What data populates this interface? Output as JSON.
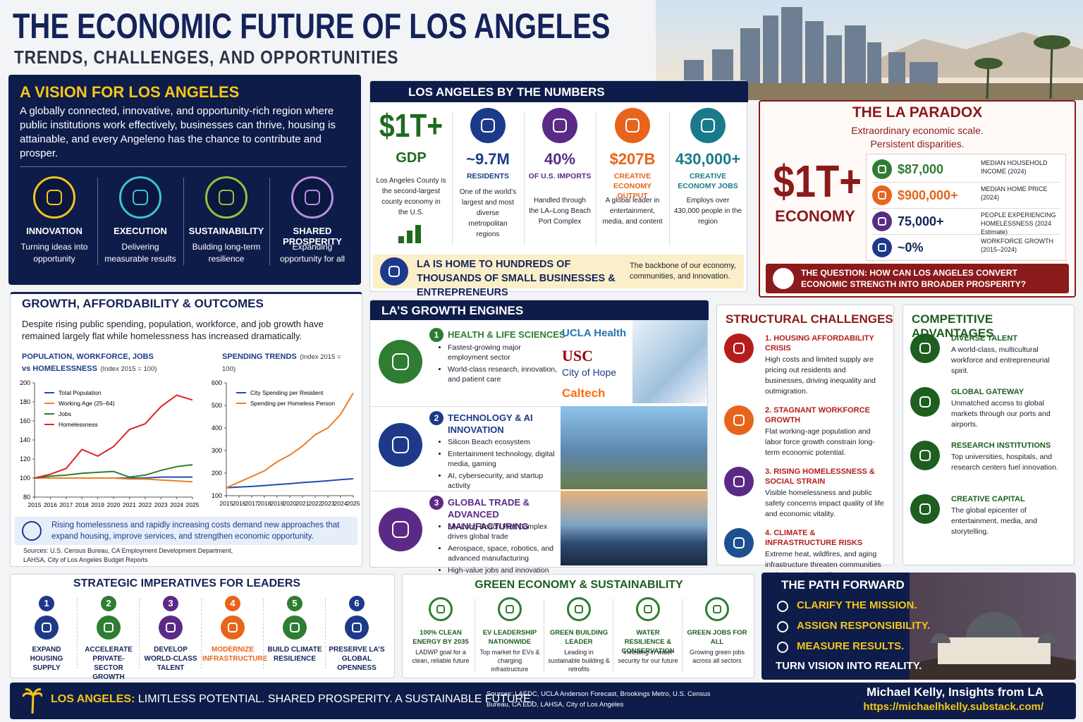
{
  "header": {
    "title": "THE ECONOMIC FUTURE OF LOS ANGELES",
    "subtitle": "TRENDS, CHALLENGES, AND OPPORTUNITIES"
  },
  "vision": {
    "title": "A VISION FOR LOS ANGELES",
    "text": "A globally connected, innovative, and opportunity-rich region where public institutions work effectively, businesses can thrive, housing is attainable, and every Angeleno has the chance to contribute and prosper.",
    "pillars": [
      {
        "label": "INNOVATION",
        "desc": "Turning ideas into opportunity"
      },
      {
        "label": "EXECUTION",
        "desc": "Delivering measurable results"
      },
      {
        "label": "SUSTAINABILITY",
        "desc": "Building long-term resilience"
      },
      {
        "label": "SHARED PROSPERITY",
        "desc": "Expanding opportunity for all"
      }
    ]
  },
  "numbers": {
    "title": "LOS ANGELES BY THE NUMBERS",
    "items": [
      {
        "value": "$1T+",
        "label": "GDP",
        "desc": "Los Angeles County is the second-largest county economy in the U.S."
      },
      {
        "value": "~9.7M",
        "label": "RESIDENTS",
        "desc": "One of the world’s largest and most diverse metropolitan regions"
      },
      {
        "value": "40%",
        "label": "OF U.S. IMPORTS",
        "desc": "Handled through the LA–Long Beach Port Complex"
      },
      {
        "value": "$207B",
        "label": "CREATIVE ECONOMY OUTPUT",
        "desc": "A global leader in entertainment, media, and content"
      },
      {
        "value": "430,000+",
        "label": "CREATIVE ECONOMY JOBS",
        "desc": "Employs over 430,000 people in the region"
      }
    ],
    "small_business": {
      "headline": "LA IS HOME TO HUNDREDS OF THOUSANDS OF SMALL BUSINESSES & ENTREPRENEURS",
      "note": "The backbone of our economy, communities, and innovation."
    }
  },
  "paradox": {
    "title": "THE LA PARADOX",
    "subtitle": "Extraordinary economic scale. Persistent disparities.",
    "big_value": "$1T+",
    "big_label": "ECONOMY",
    "stats": [
      {
        "value": "$87,000",
        "label": "MEDIAN HOUSEHOLD INCOME (2024)"
      },
      {
        "value": "$900,000+",
        "label": "MEDIAN HOME PRICE (2024)"
      },
      {
        "value": "75,000+",
        "label": "PEOPLE EXPERIENCING HOMELESSNESS (2024 Estimate)"
      },
      {
        "value": "~0%",
        "label": "WORKFORCE GROWTH (2015–2024)"
      }
    ],
    "question": "THE QUESTION: HOW CAN LOS ANGELES CONVERT ECONOMIC STRENGTH INTO BROADER PROSPERITY?"
  },
  "growth": {
    "title": "GROWTH, AFFORDABILITY & OUTCOMES",
    "text": "Despite rising public spending, population, workforce, and job growth have remained largely flat while homelessness has increased dramatically.",
    "charts": [
      {
        "type": "line",
        "title": "POPULATION, WORKFORCE, JOBS vs HOMELESSNESS",
        "subtitle": "(Index 2015 = 100)",
        "x": [
          2015,
          2016,
          2017,
          2018,
          2019,
          2020,
          2021,
          2022,
          2023,
          2024,
          2025
        ],
        "xlim": [
          2015,
          2025
        ],
        "xticks": [
          2015,
          2016,
          2017,
          2018,
          2019,
          2020,
          2021,
          2022,
          2023,
          2024,
          2025
        ],
        "ylim": [
          80,
          200
        ],
        "yticks": [
          80,
          100,
          120,
          140,
          160,
          180,
          200
        ],
        "legend": "upper left",
        "series": [
          {
            "name": "Total Population",
            "color": "#1f4fb4",
            "values": [
              100,
              100,
              100,
              100,
              100,
              100,
              100,
              100,
              101,
              101,
              101
            ]
          },
          {
            "name": "Working Age (25–64)",
            "color": "#ef7d22",
            "values": [
              100,
              100,
              100,
              100,
              100,
              100,
              99,
              99,
              98,
              97,
              96
            ]
          },
          {
            "name": "Jobs",
            "color": "#2e7d32",
            "values": [
              100,
              102,
              103,
              105,
              106,
              107,
              101,
              103,
              108,
              112,
              114
            ]
          },
          {
            "name": "Homelessness",
            "color": "#e02424",
            "values": [
              100,
              104,
              110,
              130,
              123,
              133,
              151,
              157,
              175,
              187,
              182
            ]
          }
        ]
      },
      {
        "type": "line",
        "title": "SPENDING TRENDS",
        "subtitle": "(Index 2015 = 100)",
        "x": [
          2015,
          2016,
          2017,
          2018,
          2019,
          2020,
          2021,
          2022,
          2023,
          2024,
          2025
        ],
        "xlim": [
          2015,
          2025
        ],
        "xticks": [
          2015,
          2016,
          2017,
          2018,
          2019,
          2020,
          2021,
          2022,
          2023,
          2024,
          2025
        ],
        "ylim": [
          100,
          600
        ],
        "yticks": [
          100,
          200,
          300,
          400,
          500,
          600
        ],
        "legend": "upper left",
        "series": [
          {
            "name": "City Spending per Resident",
            "color": "#1f4fb4",
            "values": [
              135,
              138,
              141,
              145,
              149,
              153,
              158,
              162,
              166,
              171,
              175
            ]
          },
          {
            "name": "Spending per Homeless Person",
            "color": "#ef7d22",
            "values": [
              135,
              160,
              185,
              210,
              250,
              280,
              320,
              370,
              400,
              460,
              555
            ]
          }
        ]
      }
    ],
    "callout": "Rising homelessness and rapidly increasing costs demand new approaches that expand housing, improve services, and strengthen economic opportunity.",
    "sources": "Sources: U.S. Census Bureau, CA Employment Development Department, LAHSA, City of Los Angeles Budget Reports"
  },
  "engines": {
    "title": "LA’S GROWTH ENGINES",
    "items": [
      {
        "number": "1",
        "title": "HEALTH & LIFE SCIENCES",
        "bullets": [
          "Fastest-growing major employment sector",
          "World-class research, innovation, and patient care"
        ],
        "partners": [
          "UCLA Health",
          "USC",
          "City of Hope",
          "Caltech"
        ]
      },
      {
        "number": "2",
        "title": "TECHNOLOGY & AI INNOVATION",
        "bullets": [
          "Silicon Beach ecosystem",
          "Entertainment technology, digital media, gaming",
          "AI, cybersecurity, and startup activity"
        ]
      },
      {
        "number": "3",
        "title": "GLOBAL TRADE & ADVANCED MANUFACTURING",
        "bullets": [
          "LA–Long Beach Port Complex drives global trade",
          "Aerospace, space, robotics, and advanced manufacturing",
          "High-value jobs and innovation"
        ]
      }
    ]
  },
  "challenges": {
    "title": "STRUCTURAL CHALLENGES",
    "items": [
      {
        "title": "1. HOUSING AFFORDABILITY CRISIS",
        "text": "High costs and limited supply are pricing out residents and businesses, driving inequality and outmigration."
      },
      {
        "title": "2. STAGNANT WORKFORCE GROWTH",
        "text": "Flat working-age population and labor force growth constrain long-term economic potential."
      },
      {
        "title": "3. RISING HOMELESSNESS & SOCIAL STRAIN",
        "text": "Visible homelessness and public safety concerns impact quality of life and economic vitality."
      },
      {
        "title": "4. CLIMATE & INFRASTRUCTURE RISKS",
        "text": "Extreme heat, wildfires, and aging infrastructure threaten communities and economic stability."
      }
    ]
  },
  "advantages": {
    "title": "COMPETITIVE ADVANTAGES",
    "items": [
      {
        "title": "DIVERSE TALENT",
        "text": "A world-class, multicultural workforce and entrepreneurial spirit."
      },
      {
        "title": "GLOBAL GATEWAY",
        "text": "Unmatched access to global markets through our ports and airports."
      },
      {
        "title": "RESEARCH INSTITUTIONS",
        "text": "Top universities, hospitals, and research centers fuel innovation."
      },
      {
        "title": "CREATIVE CAPITAL",
        "text": "The global epicenter of entertainment, media, and storytelling."
      }
    ]
  },
  "imperatives": {
    "title": "STRATEGIC IMPERATIVES FOR LEADERS",
    "items": [
      {
        "number": "1",
        "label": "EXPAND HOUSING SUPPLY"
      },
      {
        "number": "2",
        "label": "ACCELERATE PRIVATE-SECTOR GROWTH"
      },
      {
        "number": "3",
        "label": "DEVELOP WORLD-CLASS TALENT"
      },
      {
        "number": "4",
        "label": "MODERNIZE INFRASTRUCTURE"
      },
      {
        "number": "5",
        "label": "BUILD CLIMATE RESILIENCE"
      },
      {
        "number": "6",
        "label": "PRESERVE LA’S GLOBAL OPENNESS"
      }
    ]
  },
  "green": {
    "title": "GREEN ECONOMY & SUSTAINABILITY",
    "items": [
      {
        "title": "100% CLEAN ENERGY BY 2035",
        "desc": "LADWP goal for a clean, reliable future"
      },
      {
        "title": "EV LEADERSHIP NATIONWIDE",
        "desc": "Top market for EVs & charging infrastructure"
      },
      {
        "title": "GREEN BUILDING LEADER",
        "desc": "Leading in sustainable building & retrofits"
      },
      {
        "title": "WATER RESILIENCE & CONSERVATION",
        "desc": "Investing in water security for our future"
      },
      {
        "title": "GREEN JOBS FOR ALL",
        "desc": "Growing green jobs across all sectors"
      }
    ]
  },
  "path_forward": {
    "title": "THE PATH FORWARD",
    "steps": [
      "CLARIFY THE MISSION.",
      "ASSIGN RESPONSIBILITY.",
      "MEASURE RESULTS."
    ],
    "closing": "TURN VISION INTO REALITY."
  },
  "footer": {
    "tagline_lead": "LOS ANGELES:",
    "tagline": "LIMITLESS POTENTIAL. SHARED PROSPERITY. A SUSTAINABLE FUTURE.",
    "sources": "Sources: LAEDC, UCLA Anderson Forecast, Brookings Metro, U.S. Census Bureau, CA EDD, LAHSA, City of Los Angeles",
    "author": "Michael Kelly, Insights from LA",
    "url": "https://michaelhkelly.substack.com/"
  }
}
